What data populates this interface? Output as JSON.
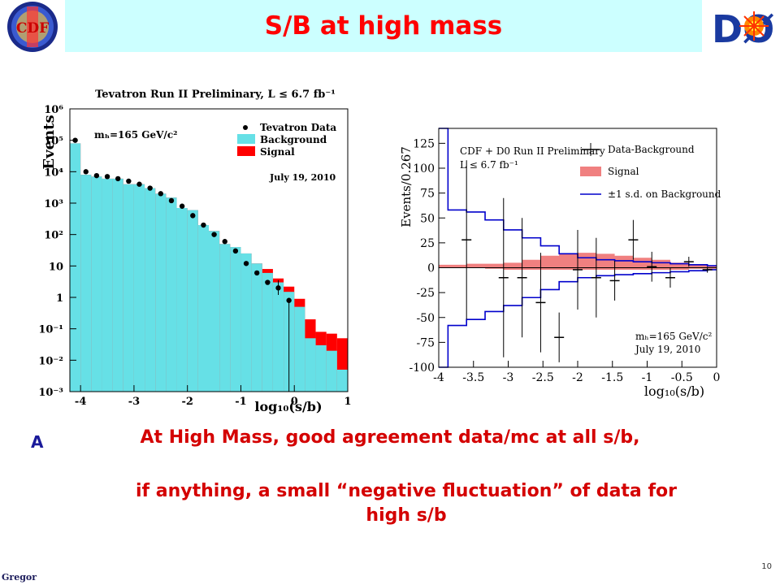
{
  "slide": {
    "title": "S/B at high mass",
    "message_prefix": "A",
    "message_line1": "At High Mass, good agreement data/mc at all  s/b,",
    "message_line2": "if anything, a small “negative fluctuation” of data for high s/b",
    "footer_author": "Gregor",
    "page_number": "10",
    "logo_left_text": "CDF",
    "logo_right_text": "DØ"
  },
  "colors": {
    "title_bg": "#ccffff",
    "title_text": "#ff0000",
    "message_text": "#d40000",
    "background_fill": "#66e0e6",
    "signal_fill": "#ff0000",
    "signal_band": "#f08080",
    "sd_line": "#0000cc"
  },
  "chart_data": [
    {
      "type": "histogram",
      "title": "Tevatron Run II Preliminary, L ≤ 6.7 fb⁻¹",
      "ylabel": "Events",
      "xlabel": "log₁₀(s/b)",
      "xlim": [
        -4.2,
        1.0
      ],
      "yscale": "log",
      "ylim": [
        0.001,
        1000000
      ],
      "x_ticks": [
        "-4",
        "-3",
        "-2",
        "-1",
        "0",
        "1"
      ],
      "y_ticks": [
        "10⁻³",
        "10⁻²",
        "10⁻¹",
        "1",
        "10",
        "10²",
        "10³",
        "10⁴",
        "10⁵",
        "10⁶"
      ],
      "annotation_mass": "mₕ=165 GeV/c²",
      "annotation_date": "July 19, 2010",
      "legend": [
        "Tevatron Data",
        "Background",
        "Signal"
      ],
      "legend_position": "top-right",
      "bin_edges": [
        -4.2,
        -4.0,
        -3.8,
        -3.6,
        -3.4,
        -3.2,
        -3.0,
        -2.8,
        -2.6,
        -2.4,
        -2.2,
        -2.0,
        -1.8,
        -1.6,
        -1.4,
        -1.2,
        -1.0,
        -0.8,
        -0.6,
        -0.4,
        -0.2,
        0.0,
        0.2,
        0.4,
        0.6,
        0.8,
        1.0
      ],
      "background": [
        80000,
        8000,
        7000,
        6000,
        6000,
        4000,
        4000,
        3000,
        2000,
        1500,
        700,
        600,
        200,
        130,
        50,
        40,
        25,
        12,
        6,
        3,
        1.5,
        0.5,
        0.05,
        0.03,
        0.02,
        0.005
      ],
      "signal_top": [
        80000,
        8000,
        7000,
        6000,
        6000,
        4000,
        4000,
        3000,
        2000,
        1500,
        700,
        600,
        200,
        130,
        50,
        40,
        25,
        12,
        8,
        4,
        2.2,
        0.9,
        0.2,
        0.08,
        0.07,
        0.05
      ],
      "data_x": [
        -4.1,
        -3.9,
        -3.7,
        -3.5,
        -3.3,
        -3.1,
        -2.9,
        -2.7,
        -2.5,
        -2.3,
        -2.1,
        -1.9,
        -1.7,
        -1.5,
        -1.3,
        -1.1,
        -0.9,
        -0.7,
        -0.5,
        -0.3,
        -0.1
      ],
      "data_y": [
        100000,
        10000,
        7500,
        7000,
        6000,
        5000,
        4000,
        3000,
        2000,
        1200,
        800,
        400,
        200,
        100,
        60,
        30,
        12,
        6,
        3,
        2,
        0.8
      ]
    },
    {
      "type": "line",
      "title": "CDF + D0 Run II Preliminary",
      "lumi": "L ≤ 6.7 fb⁻¹",
      "ylabel": "Events/0.267",
      "xlabel": "log₁₀(s/b)",
      "xlim": [
        -4,
        0
      ],
      "ylim": [
        -100,
        140
      ],
      "x_ticks": [
        "-4",
        "-3.5",
        "-3",
        "-2.5",
        "-2",
        "-1.5",
        "-1",
        "-0.5",
        "0"
      ],
      "y_ticks": [
        "-100",
        "-75",
        "-50",
        "-25",
        "0",
        "25",
        "50",
        "75",
        "100",
        "125"
      ],
      "annotation_mass": "mₕ=165 GeV/c²",
      "annotation_date": "July 19, 2010",
      "legend": [
        "Data-Background",
        "Signal",
        "±1 s.d. on Background"
      ],
      "legend_position": "top-right",
      "data_x": [
        -3.6,
        -3.067,
        -2.8,
        -2.533,
        -2.267,
        -2.0,
        -1.733,
        -1.467,
        -1.2,
        -0.933,
        -0.667,
        -0.4,
        -0.133
      ],
      "data_y": [
        28,
        -10,
        -10,
        -35,
        -70,
        -2,
        -10,
        -13,
        28,
        1,
        -10,
        6,
        -2
      ],
      "data_err": [
        80,
        80,
        60,
        50,
        25,
        40,
        40,
        20,
        20,
        15,
        10,
        5,
        3
      ],
      "sd_bin_edges": [
        -4.0,
        -3.867,
        -3.6,
        -3.333,
        -3.067,
        -2.8,
        -2.533,
        -2.267,
        -2.0,
        -1.733,
        -1.467,
        -1.2,
        -0.933,
        -0.667,
        -0.4,
        -0.133,
        0.0
      ],
      "sd_upper": [
        140,
        58,
        56,
        48,
        38,
        30,
        22,
        14,
        10,
        8,
        7,
        6,
        5,
        4,
        3,
        2
      ],
      "sd_lower": [
        -140,
        -58,
        -52,
        -44,
        -38,
        -30,
        -22,
        -14,
        -10,
        -8,
        -7,
        -6,
        -5,
        -4,
        -3,
        -2
      ],
      "signal_upper": [
        3,
        3,
        4,
        4,
        5,
        8,
        12,
        14,
        15,
        14,
        12,
        10,
        8,
        5,
        3,
        2
      ],
      "signal_lower": [
        0,
        0,
        0,
        -1,
        -2,
        -2,
        -2,
        -2,
        -2,
        -2,
        -2,
        -2,
        -2,
        -2,
        -1,
        -1
      ]
    }
  ]
}
